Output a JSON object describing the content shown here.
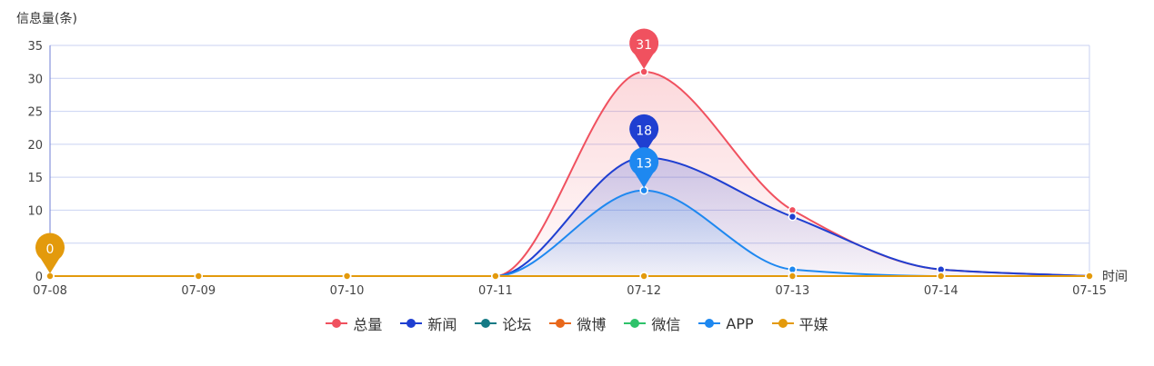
{
  "chart_data": {
    "type": "area",
    "ylabel": "信息量(条)",
    "xlabel": "时间",
    "categories": [
      "07-08",
      "07-09",
      "07-10",
      "07-11",
      "07-12",
      "07-13",
      "07-14",
      "07-15"
    ],
    "ylim": [
      0,
      35
    ],
    "yticks": [
      0,
      10,
      15,
      20,
      25,
      30,
      35
    ],
    "grid": true,
    "legend_position": "bottom",
    "series": [
      {
        "name": "总量",
        "color": "#f0515f",
        "values": [
          0,
          0,
          0,
          0,
          31,
          10,
          1,
          0
        ],
        "area": true,
        "pin_value": "31"
      },
      {
        "name": "新闻",
        "color": "#1f3fd1",
        "values": [
          0,
          0,
          0,
          0,
          18,
          9,
          1,
          0
        ],
        "area": true,
        "pin_value": "18"
      },
      {
        "name": "论坛",
        "color": "#157a85",
        "values": [
          0,
          0,
          0,
          0,
          0,
          0,
          0,
          0
        ]
      },
      {
        "name": "微博",
        "color": "#e8681b",
        "values": [
          0,
          0,
          0,
          0,
          0,
          0,
          0,
          0
        ]
      },
      {
        "name": "微信",
        "color": "#2ec26a",
        "values": [
          0,
          0,
          0,
          0,
          0,
          0,
          0,
          0
        ]
      },
      {
        "name": "APP",
        "color": "#1e88f0",
        "values": [
          0,
          0,
          0,
          0,
          13,
          1,
          0,
          0
        ],
        "area": true,
        "pin_value": "13"
      },
      {
        "name": "平媒",
        "color": "#e39a0c",
        "values": [
          0,
          0,
          0,
          0,
          0,
          0,
          0,
          0
        ],
        "pin_value": "0"
      }
    ]
  }
}
